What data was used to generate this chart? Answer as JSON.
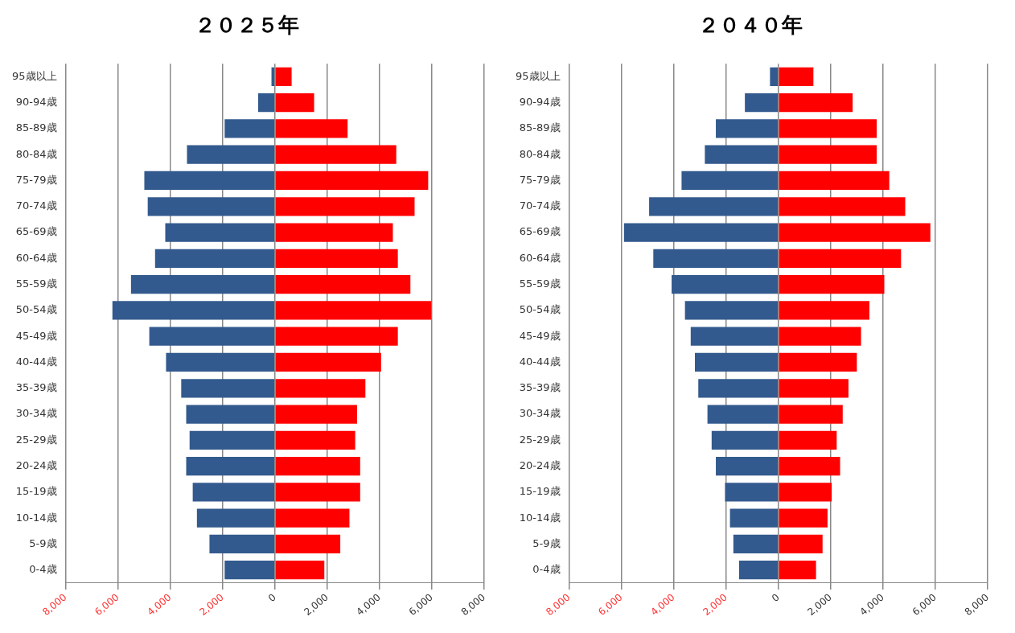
{
  "chart_data": [
    {
      "type": "bar",
      "title": "２０２５年",
      "orientation": "horizontal",
      "stacked": true,
      "grid": "x",
      "categories": [
        "95歳以上",
        "90-94歳",
        "85-89歳",
        "80-84歳",
        "75-79歳",
        "70-74歳",
        "65-69歳",
        "60-64歳",
        "55-59歳",
        "50-54歳",
        "45-49歳",
        "40-44歳",
        "35-39歳",
        "30-34歳",
        "25-29歳",
        "20-24歳",
        "15-19歳",
        "10-14歳",
        "5-9歳",
        "0-4歳"
      ],
      "series": [
        {
          "color": "#335a8e",
          "values": [
            -130,
            -640,
            -1920,
            -3360,
            -4990,
            -4860,
            -4190,
            -4580,
            -5500,
            -6210,
            -4800,
            -4160,
            -3580,
            -3390,
            -3260,
            -3390,
            -3140,
            -2980,
            -2500,
            -1920
          ]
        },
        {
          "color": "#ff0000",
          "values": [
            640,
            1500,
            2780,
            4640,
            5860,
            5340,
            4510,
            4700,
            5180,
            5980,
            4700,
            4060,
            3460,
            3140,
            3070,
            3260,
            3260,
            2850,
            2500,
            1890
          ]
        }
      ],
      "xlim": [
        -8000,
        8000
      ],
      "xticks": [
        {
          "value": -8000,
          "label": "8,000"
        },
        {
          "value": -6000,
          "label": "6,000"
        },
        {
          "value": -4000,
          "label": "4,000"
        },
        {
          "value": -2000,
          "label": "2,000"
        },
        0,
        {
          "value": 2000,
          "label": "2,000"
        },
        {
          "value": 4000,
          "label": "4,000"
        },
        {
          "value": 6000,
          "label": "6,000"
        },
        {
          "value": 8000,
          "label": "8,000"
        }
      ]
    },
    {
      "type": "bar",
      "title": "２０４０年",
      "orientation": "horizontal",
      "stacked": true,
      "grid": "x",
      "categories": [
        "95歳以上",
        "90-94歳",
        "85-89歳",
        "80-84歳",
        "75-79歳",
        "70-74歳",
        "65-69歳",
        "60-64歳",
        "55-59歳",
        "50-54歳",
        "45-49歳",
        "40-44歳",
        "35-39歳",
        "30-34歳",
        "25-29歳",
        "20-24歳",
        "15-19歳",
        "10-14歳",
        "5-9歳",
        "0-4歳"
      ],
      "series": [
        {
          "color": "#335a8e",
          "values": [
            -320,
            -1280,
            -2390,
            -2810,
            -3700,
            -4940,
            -5900,
            -4780,
            -4080,
            -3570,
            -3350,
            -3190,
            -3060,
            -2710,
            -2550,
            -2390,
            -2040,
            -1850,
            -1720,
            -1500
          ]
        },
        {
          "color": "#ff0000",
          "values": [
            1340,
            2840,
            3760,
            3760,
            4240,
            4850,
            5810,
            4690,
            4050,
            3480,
            3160,
            3000,
            2680,
            2460,
            2230,
            2360,
            2040,
            1880,
            1690,
            1440
          ]
        }
      ],
      "xlim": [
        -8000,
        8000
      ],
      "xticks": [
        {
          "value": -8000,
          "label": "8,000"
        },
        {
          "value": -6000,
          "label": "6,000"
        },
        {
          "value": -4000,
          "label": "4,000"
        },
        {
          "value": -2000,
          "label": "2,000"
        },
        0,
        {
          "value": 2000,
          "label": "2,000"
        },
        {
          "value": 4000,
          "label": "4,000"
        },
        {
          "value": 6000,
          "label": "6,000"
        },
        {
          "value": 8000,
          "label": "8,000"
        }
      ]
    }
  ]
}
